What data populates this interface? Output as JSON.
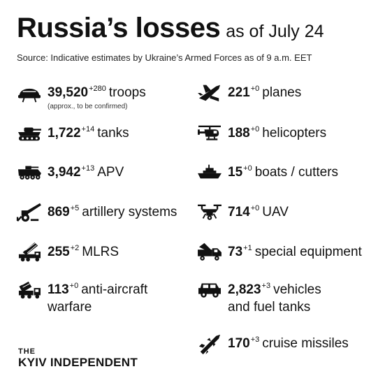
{
  "header": {
    "title": "Russia’s losses",
    "date_text": "as of July 24",
    "source": "Source: Indicative estimates by Ukraine’s Armed Forces as of 9 a.m. EET"
  },
  "left": [
    {
      "icon": "helmet-icon",
      "value": "39,520",
      "delta": "+280",
      "label": "troops",
      "note": "(approx., to be confirmed)"
    },
    {
      "icon": "tank-icon",
      "value": "1,722",
      "delta": "+14",
      "label": "tanks"
    },
    {
      "icon": "apv-icon",
      "value": "3,942",
      "delta": "+13",
      "label": "APV"
    },
    {
      "icon": "artillery-icon",
      "value": "869",
      "delta": "+5",
      "label": "artillery systems"
    },
    {
      "icon": "mlrs-icon",
      "value": "255",
      "delta": "+2",
      "label": "MLRS"
    },
    {
      "icon": "anti-aircraft-icon",
      "value": "113",
      "delta": "+0",
      "label": "anti-aircraft",
      "label2": "warfare"
    }
  ],
  "right": [
    {
      "icon": "plane-icon",
      "value": "221",
      "delta": "+0",
      "label": "planes"
    },
    {
      "icon": "helicopter-icon",
      "value": "188",
      "delta": "+0",
      "label": "helicopters"
    },
    {
      "icon": "boat-icon",
      "value": "15",
      "delta": "+0",
      "label": "boats / cutters"
    },
    {
      "icon": "drone-icon",
      "value": "714",
      "delta": "+0",
      "label": "UAV"
    },
    {
      "icon": "special-equipment-icon",
      "value": "73",
      "delta": "+1",
      "label": "special equipment"
    },
    {
      "icon": "vehicle-icon",
      "value": "2,823",
      "delta": "+3",
      "label": "vehicles",
      "label2": "and fuel tanks"
    },
    {
      "icon": "cruise-missile-icon",
      "value": "170",
      "delta": "+3",
      "label": "cruise missiles"
    }
  ],
  "brand": {
    "the": "THE",
    "name": "KYIV INDEPENDENT"
  }
}
